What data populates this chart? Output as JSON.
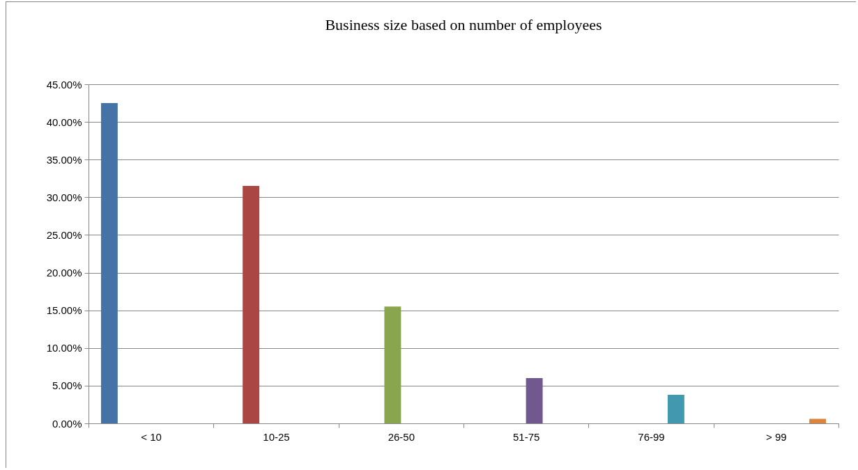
{
  "chart_data": {
    "type": "bar",
    "title": "Business size based on number of employees",
    "categories": [
      "< 10",
      "10-25",
      "26-50",
      "51-75",
      "76-99",
      "> 99"
    ],
    "values": [
      42.5,
      31.5,
      15.5,
      6.0,
      3.8,
      0.6
    ],
    "colors": [
      "#4572a7",
      "#aa4643",
      "#89a54e",
      "#71588f",
      "#4198af",
      "#db843d"
    ],
    "ylim": [
      0,
      45
    ],
    "yticks": [
      {
        "value": 0,
        "label": "0.00%"
      },
      {
        "value": 5,
        "label": "5.00%"
      },
      {
        "value": 10,
        "label": "10.00%"
      },
      {
        "value": 15,
        "label": "15.00%"
      },
      {
        "value": 20,
        "label": "20.00%"
      },
      {
        "value": 25,
        "label": "25.00%"
      },
      {
        "value": 30,
        "label": "30.00%"
      },
      {
        "value": 35,
        "label": "35.00%"
      },
      {
        "value": 40,
        "label": "40.00%"
      },
      {
        "value": 45,
        "label": "45.00%"
      }
    ],
    "grid": "y",
    "legend": false
  }
}
